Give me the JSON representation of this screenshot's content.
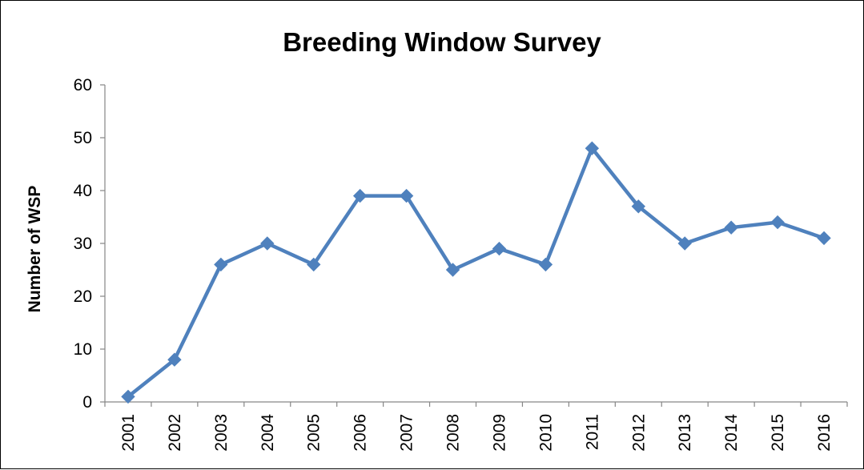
{
  "chart_data": {
    "type": "line",
    "title": "Breeding Window Survey",
    "xlabel": "",
    "ylabel": "Number of WSP",
    "categories": [
      "2001",
      "2002",
      "2003",
      "2004",
      "2005",
      "2006",
      "2007",
      "2008",
      "2009",
      "2010",
      "2011",
      "2012",
      "2013",
      "2014",
      "2015",
      "2016"
    ],
    "series": [
      {
        "values": [
          1,
          8,
          26,
          30,
          26,
          39,
          39,
          25,
          29,
          26,
          48,
          37,
          30,
          33,
          34,
          31
        ]
      }
    ],
    "ylim": [
      0,
      60
    ],
    "yticks": [
      "0",
      "10",
      "20",
      "30",
      "40",
      "50",
      "60"
    ],
    "grid": false,
    "legend": "none",
    "series_color": "#4F81BD",
    "axis_color": "#868686"
  }
}
